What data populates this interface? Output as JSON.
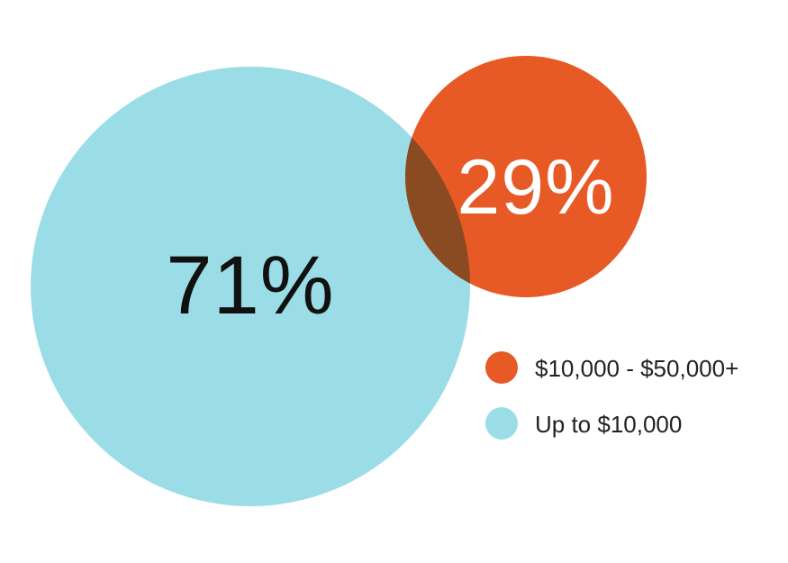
{
  "chart_data": {
    "type": "bubble",
    "series": [
      {
        "name": "Up to $10,000",
        "value": 71,
        "label": "71%",
        "color": "#9bdde6",
        "label_color": "#111111"
      },
      {
        "name": "$10,000 - $50,000+",
        "value": 29,
        "label": "29%",
        "color": "#e75a26",
        "label_color": "#ffffff"
      }
    ],
    "overlap_color": "#8a4a22",
    "legend": {
      "placement": "bottom-right",
      "order": [
        "$10,000 - $50,000+",
        "Up to $10,000"
      ]
    }
  }
}
